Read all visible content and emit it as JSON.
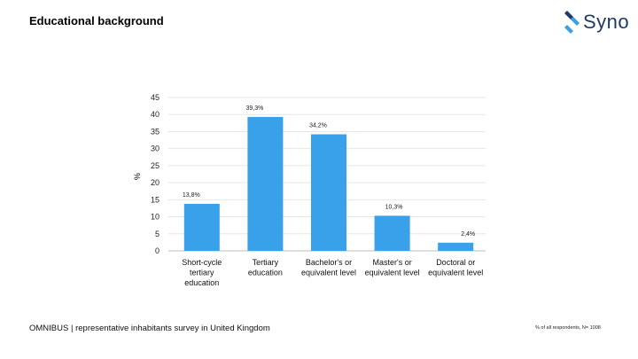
{
  "page": {
    "title": "Educational background",
    "footer_left": "OMNIBUS | representative inhabitants survey in United Kingdom",
    "footer_right": "% of all respondents, N= 1008"
  },
  "logo": {
    "text": "Syno",
    "colors": {
      "dark": "#1f3a68",
      "light": "#3aa0e6"
    }
  },
  "chart_data": {
    "type": "bar",
    "title": "",
    "xlabel": "",
    "ylabel": "%",
    "ylim": [
      0,
      45
    ],
    "yticks": [
      0,
      5,
      10,
      15,
      20,
      25,
      30,
      35,
      40,
      45
    ],
    "grid": true,
    "bar_color": "#39a0ea",
    "categories": [
      [
        "Short-cycle",
        "tertiary",
        "education"
      ],
      [
        "Tertiary",
        "education"
      ],
      [
        "Bachelor's or",
        "equivalent level"
      ],
      [
        "Master's or",
        "equivalent level"
      ],
      [
        "Doctoral or",
        "equivalent level"
      ]
    ],
    "values": [
      13.8,
      39.3,
      34.2,
      10.3,
      2.4
    ],
    "labels": [
      "13,8%",
      "39,3%",
      "34,2%",
      "10,3%",
      "2,4%"
    ]
  }
}
